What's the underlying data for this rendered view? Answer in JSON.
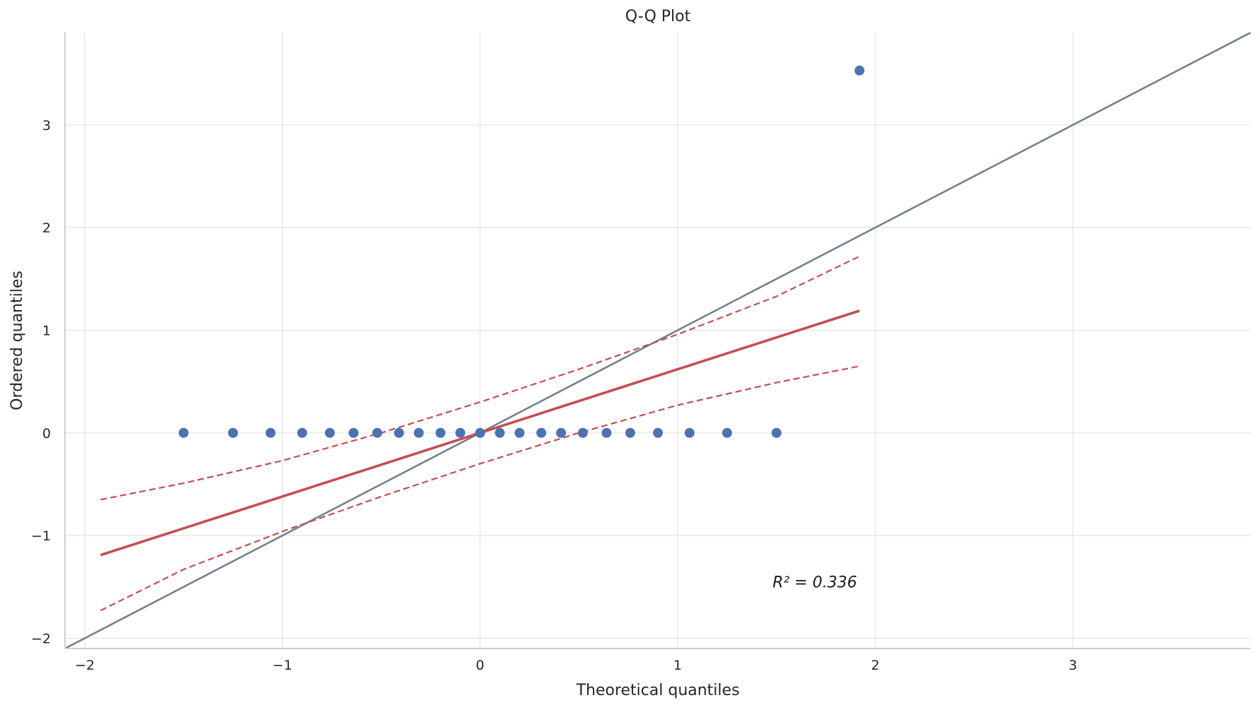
{
  "chart_data": {
    "type": "scatter",
    "title": "Q-Q Plot",
    "xlabel": "Theoretical quantiles",
    "ylabel": "Ordered quantiles",
    "xlim": [
      -2.1,
      3.9
    ],
    "ylim": [
      -2.1,
      3.9
    ],
    "xticks": [
      -2,
      -1,
      0,
      1,
      2,
      3
    ],
    "yticks": [
      -2,
      -1,
      0,
      1,
      2,
      3
    ],
    "xtick_labels": [
      "−2",
      "−1",
      "0",
      "1",
      "2",
      "3"
    ],
    "ytick_labels": [
      "−2",
      "−1",
      "0",
      "1",
      "2",
      "3"
    ],
    "grid": true,
    "points": {
      "x": [
        -1.5,
        -1.25,
        -1.06,
        -0.9,
        -0.76,
        -0.64,
        -0.52,
        -0.41,
        -0.31,
        -0.2,
        -0.1,
        0.0,
        0.1,
        0.2,
        0.31,
        0.41,
        0.52,
        0.64,
        0.76,
        0.9,
        1.06,
        1.25,
        1.5,
        1.92
      ],
      "y": [
        0,
        0,
        0,
        0,
        0,
        0,
        0,
        0,
        0,
        0,
        0,
        0,
        0,
        0,
        0,
        0,
        0,
        0,
        0,
        0,
        0,
        0,
        0,
        3.53
      ],
      "color": "#4c72b0"
    },
    "fit_line": {
      "x": [
        -1.92,
        1.92
      ],
      "y": [
        -1.19,
        1.19
      ],
      "color": "#c44e52"
    },
    "confidence_band": {
      "x": [
        -1.92,
        -1.5,
        -1.0,
        -0.5,
        0.0,
        0.5,
        1.0,
        1.5,
        1.92
      ],
      "upper": [
        -0.65,
        -0.49,
        -0.27,
        0.0,
        0.3,
        0.62,
        0.96,
        1.33,
        1.72
      ],
      "lower": [
        -1.73,
        -1.33,
        -0.96,
        -0.62,
        -0.3,
        0.0,
        0.27,
        0.49,
        0.65
      ],
      "color": "#c44e52"
    },
    "reference_line": {
      "x": [
        -2.1,
        3.9
      ],
      "y": [
        -2.1,
        3.9
      ],
      "color": "#708090"
    },
    "annotation": {
      "text": "R² = 0.336",
      "x": 1.48,
      "y": -1.45
    }
  }
}
